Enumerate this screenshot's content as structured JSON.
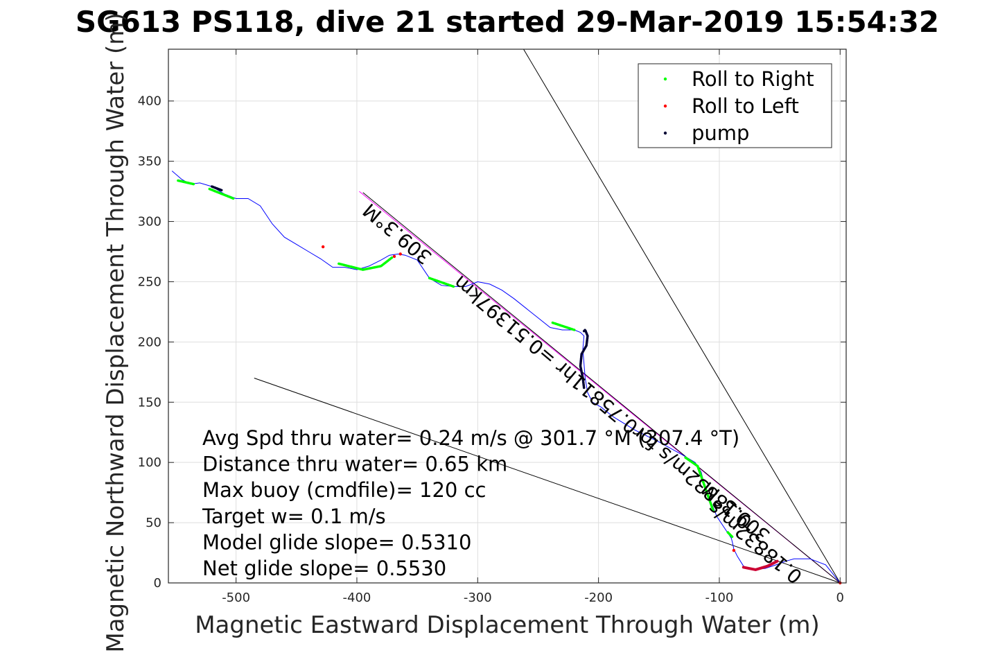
{
  "chart_data": {
    "type": "line",
    "title": "SG613 PS118, dive 21 started 29-Mar-2019 15:54:32",
    "xlabel": "Magnetic Eastward Displacement Through Water (m)",
    "ylabel": "Magnetic Northward Displacement Through Water (m)",
    "xlim": [
      -556,
      5
    ],
    "ylim": [
      0,
      443
    ],
    "xticks": [
      -500,
      -400,
      -300,
      -200,
      -100,
      0
    ],
    "yticks": [
      0,
      50,
      100,
      150,
      200,
      250,
      300,
      350,
      400
    ],
    "grid": true,
    "legend_position": "top-right",
    "legend": [
      {
        "label": "Roll to Right",
        "color": "#00ff00"
      },
      {
        "label": "Roll to Left",
        "color": "#ff0000"
      },
      {
        "label": "pump",
        "color": "#000033"
      }
    ],
    "track": {
      "name": "track",
      "color": "#0000ff",
      "x": [
        -553,
        -545,
        -538,
        -530,
        -520,
        -510,
        -500,
        -490,
        -480,
        -470,
        -460,
        -450,
        -440,
        -430,
        -420,
        -410,
        -400,
        -390,
        -380,
        -373,
        -366,
        -360,
        -355,
        -350,
        -340,
        -330,
        -320,
        -310,
        -300,
        -290,
        -280,
        -270,
        -260,
        -250,
        -240,
        -230,
        -220,
        -215,
        -212,
        -213,
        -212,
        -211,
        -209,
        -205,
        -198,
        -188,
        -170,
        -150,
        -130,
        -120,
        -115,
        -112,
        -108,
        -102,
        -96,
        -92,
        -90,
        -89,
        -88,
        -85,
        -80,
        -72,
        -62,
        -53,
        -45,
        -38,
        -25,
        -12,
        0
      ],
      "y": [
        342,
        335,
        331,
        332,
        329,
        323,
        319,
        319,
        313,
        298,
        287,
        281,
        275,
        269,
        262,
        262,
        260,
        263,
        268,
        272,
        273,
        272,
        270,
        268,
        253,
        247,
        246,
        246,
        250,
        248,
        243,
        236,
        228,
        220,
        212,
        210,
        210,
        208,
        205,
        194,
        182,
        170,
        158,
        150,
        146,
        138,
        127,
        117,
        106,
        100,
        92,
        80,
        70,
        55,
        46,
        40,
        37,
        33,
        28,
        22,
        14,
        11,
        12,
        15,
        18,
        20,
        20,
        15,
        0
      ]
    },
    "roll_right_segments": [
      {
        "x": [
          -548,
          -535
        ],
        "y": [
          334,
          331
        ]
      },
      {
        "x": [
          -522,
          -502
        ],
        "y": [
          327,
          319
        ]
      },
      {
        "x": [
          -415,
          -395,
          -380,
          -371
        ],
        "y": [
          265,
          260,
          263,
          270
        ]
      },
      {
        "x": [
          -340,
          -320
        ],
        "y": [
          253,
          246
        ]
      },
      {
        "x": [
          -238,
          -220
        ],
        "y": [
          216,
          210
        ]
      },
      {
        "x": [
          -128,
          -118,
          -112,
          -105
        ],
        "y": [
          104,
          97,
          80,
          60
        ]
      },
      {
        "x": [
          -93,
          -89
        ],
        "y": [
          42,
          38
        ]
      }
    ],
    "roll_left_points": [
      {
        "x": -428,
        "y": 279
      },
      {
        "x": -369,
        "y": 271
      },
      {
        "x": -364,
        "y": 273
      },
      {
        "x": -88,
        "y": 27
      },
      {
        "x": 0,
        "y": 0
      }
    ],
    "roll_left_segments": [
      {
        "x": [
          -80,
          -70,
          -60,
          -52
        ],
        "y": [
          13,
          11,
          14,
          18
        ]
      }
    ],
    "pump_segments": [
      {
        "x": [
          -520,
          -512
        ],
        "y": [
          329,
          326
        ]
      },
      {
        "x": [
          -212,
          -211,
          -209,
          -210,
          -214,
          -215,
          -213,
          -212
        ],
        "y": [
          209,
          210,
          205,
          197,
          190,
          180,
          170,
          162
        ]
      }
    ],
    "reference_lines": [
      {
        "x": [
          -398,
          0
        ],
        "y": [
          325,
          0
        ],
        "color": "#ff00ff"
      },
      {
        "x": [
          -395,
          0
        ],
        "y": [
          324,
          0
        ],
        "color": "#000000"
      },
      {
        "x": [
          -262,
          0
        ],
        "y": [
          443,
          0
        ],
        "color": "#000000"
      },
      {
        "x": [
          -485,
          0
        ],
        "y": [
          170,
          0
        ],
        "color": "#000000"
      }
    ],
    "annotations": [
      "Avg Spd thru water=  0.24 m/s @ 301.7 °M (307.4 °T)",
      "Distance thru water=  0.65 km",
      "Max buoy (cmdfile)= 120 cc",
      "Target w= 0.1 m/s",
      "Model glide slope= 0.5310",
      "Net glide slope= 0.5530"
    ],
    "rotated_labels": [
      {
        "text": "309.3°M",
        "x": -363,
        "y": 294
      },
      {
        "text": "0.18832m/s for0.75811hr =0.51397km",
        "x": -193,
        "y": 154
      },
      {
        "text": "0.18832m/s",
        "x": -67,
        "y": 38
      },
      {
        "text": "309.3°M",
        "x": -83,
        "y": 63
      }
    ]
  }
}
